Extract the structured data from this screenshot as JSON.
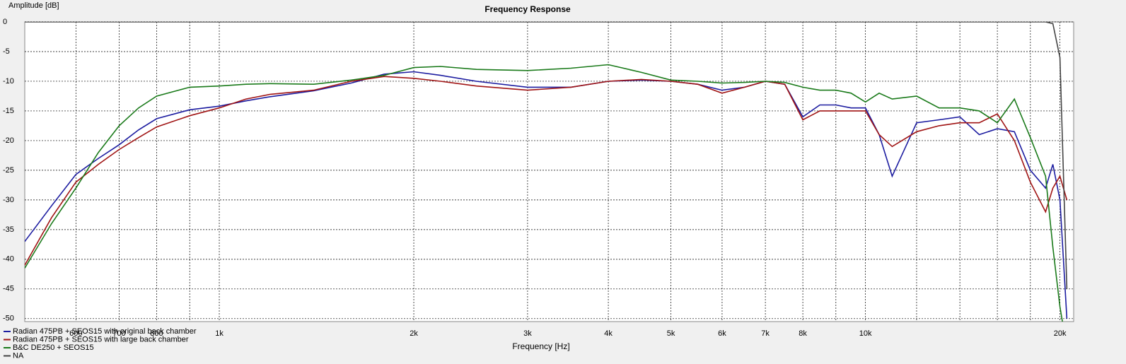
{
  "chart_data": {
    "type": "line",
    "title": "Frequency Response",
    "y_label": "Amplitude [dB]",
    "x_label": "Frequency [Hz]",
    "log_x": true,
    "grid": true,
    "xlim": [
      500,
      21000
    ],
    "ylim": [
      -50.5,
      0
    ],
    "xticks": [
      600,
      700,
      800,
      {
        "value": 900,
        "label": null
      },
      {
        "value": 1000,
        "label": "1k"
      },
      {
        "value": 2000,
        "label": "2k"
      },
      {
        "value": 3000,
        "label": "3k"
      },
      {
        "value": 4000,
        "label": "4k"
      },
      {
        "value": 5000,
        "label": "5k"
      },
      {
        "value": 6000,
        "label": "6k"
      },
      {
        "value": 7000,
        "label": "7k"
      },
      {
        "value": 8000,
        "label": "8k"
      },
      {
        "value": 9000,
        "label": null
      },
      {
        "value": 10000,
        "label": "10k"
      },
      {
        "value": 12000,
        "label": null
      },
      {
        "value": 14000,
        "label": null
      },
      {
        "value": 16000,
        "label": null
      },
      {
        "value": 18000,
        "label": null
      },
      {
        "value": 20000,
        "label": "20k"
      }
    ],
    "yticks": [
      0,
      -5,
      -10,
      -15,
      -20,
      -25,
      -30,
      -35,
      -40,
      -45,
      -50
    ],
    "x": [
      500,
      550,
      600,
      650,
      700,
      750,
      800,
      900,
      1000,
      1100,
      1200,
      1400,
      1600,
      1800,
      2000,
      2200,
      2500,
      3000,
      3500,
      4000,
      4500,
      5000,
      5500,
      6000,
      6500,
      7000,
      7500,
      8000,
      8500,
      9000,
      9500,
      10000,
      10500,
      11000,
      12000,
      13000,
      14000,
      15000,
      16000,
      17000,
      18000,
      19000,
      19500,
      20000,
      20500
    ],
    "series": [
      {
        "name": "Radian 475PB + SEOS15 with original back chamber",
        "color": "#1c1ca0",
        "values": [
          -37,
          -31,
          -25.7,
          -23,
          -20.7,
          -18.2,
          -16.3,
          -14.8,
          -14.2,
          -13.3,
          -12.6,
          -11.6,
          -10.3,
          -8.8,
          -8.4,
          -9,
          -10,
          -11,
          -11,
          -10,
          -9.8,
          -10,
          -10.5,
          -11.5,
          -11,
          -10,
          -10.5,
          -16,
          -14,
          -14,
          -14.5,
          -14.5,
          -19,
          -26,
          -17,
          -16.5,
          -16,
          -19,
          -18,
          -18.5,
          -25,
          -28,
          -24,
          -30,
          -50
        ]
      },
      {
        "name": "Radian 475PB + SEOS15 with large back chamber",
        "color": "#a01414",
        "values": [
          -41,
          -33,
          -27,
          -24,
          -21.5,
          -19.5,
          -17.7,
          -15.8,
          -14.5,
          -13,
          -12.2,
          -11.5,
          -10,
          -9.2,
          -9.5,
          -10,
          -10.8,
          -11.5,
          -11,
          -10,
          -9.7,
          -10,
          -10.5,
          -12,
          -11,
          -10,
          -10.5,
          -16.5,
          -15,
          -15,
          -15,
          -15,
          -19,
          -21,
          -18.5,
          -17.5,
          -17,
          -17,
          -15.5,
          -20,
          -27,
          -32,
          -28,
          -26,
          -30
        ]
      },
      {
        "name": "B&C DE250 + SEOS15",
        "color": "#1a7a1a",
        "values": [
          -41.5,
          -34,
          -28,
          -22,
          -17.5,
          -14.5,
          -12.5,
          -11,
          -10.8,
          -10.5,
          -10.4,
          -10.5,
          -9.8,
          -9,
          -7.7,
          -7.5,
          -8,
          -8.2,
          -7.8,
          -7.2,
          -8.5,
          -9.8,
          -10,
          -10.3,
          -10.2,
          -10,
          -10.2,
          -11,
          -11.5,
          -11.5,
          -12,
          -13.5,
          -12,
          -13,
          -12.5,
          -14.5,
          -14.5,
          -15,
          -17,
          -13,
          -19.5,
          -26,
          -38,
          -48,
          -55
        ]
      },
      {
        "name": "NA",
        "color": "#444444",
        "values": [
          0,
          0,
          0,
          0,
          0,
          0,
          0,
          0,
          0,
          0,
          0,
          0,
          0,
          0,
          0,
          0,
          0,
          0,
          0,
          0,
          0,
          0,
          0,
          0,
          0,
          0,
          0,
          0,
          0,
          0,
          0,
          0,
          0,
          0,
          0,
          0,
          0,
          0,
          0,
          0,
          0,
          0,
          -0.3,
          -6,
          -45
        ]
      }
    ]
  }
}
